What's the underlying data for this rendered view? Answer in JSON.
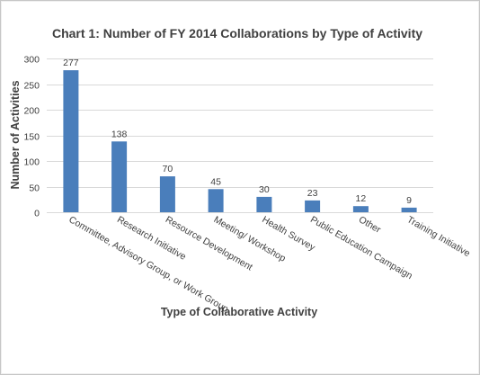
{
  "chart_data": {
    "type": "bar",
    "title": "Chart 1: Number of FY 2014 Collaborations by Type of Activity",
    "xlabel": "Type of Collaborative Activity",
    "ylabel": "Number of Activities",
    "categories": [
      "Committee, Advisory Group, or Work Group",
      "Research Initiative",
      "Resource Development",
      "Meeting/ Workshop",
      "Health Survey",
      "Public Education Campaign",
      "Other",
      "Training Initiative"
    ],
    "values": [
      277,
      138,
      70,
      45,
      30,
      23,
      12,
      9
    ],
    "data_labels": [
      "277",
      "138",
      "70",
      "45",
      "30",
      "23",
      "12",
      "9"
    ],
    "ylim": [
      0,
      300
    ],
    "yticks": [
      0,
      50,
      100,
      150,
      200,
      250,
      300
    ],
    "ytick_labels": [
      "0",
      "50",
      "100",
      "150",
      "200",
      "250",
      "300"
    ],
    "grid": true,
    "bar_color": "#4a7ebb",
    "gridline_color": "#d9d9d9",
    "text_color": "#404040"
  }
}
